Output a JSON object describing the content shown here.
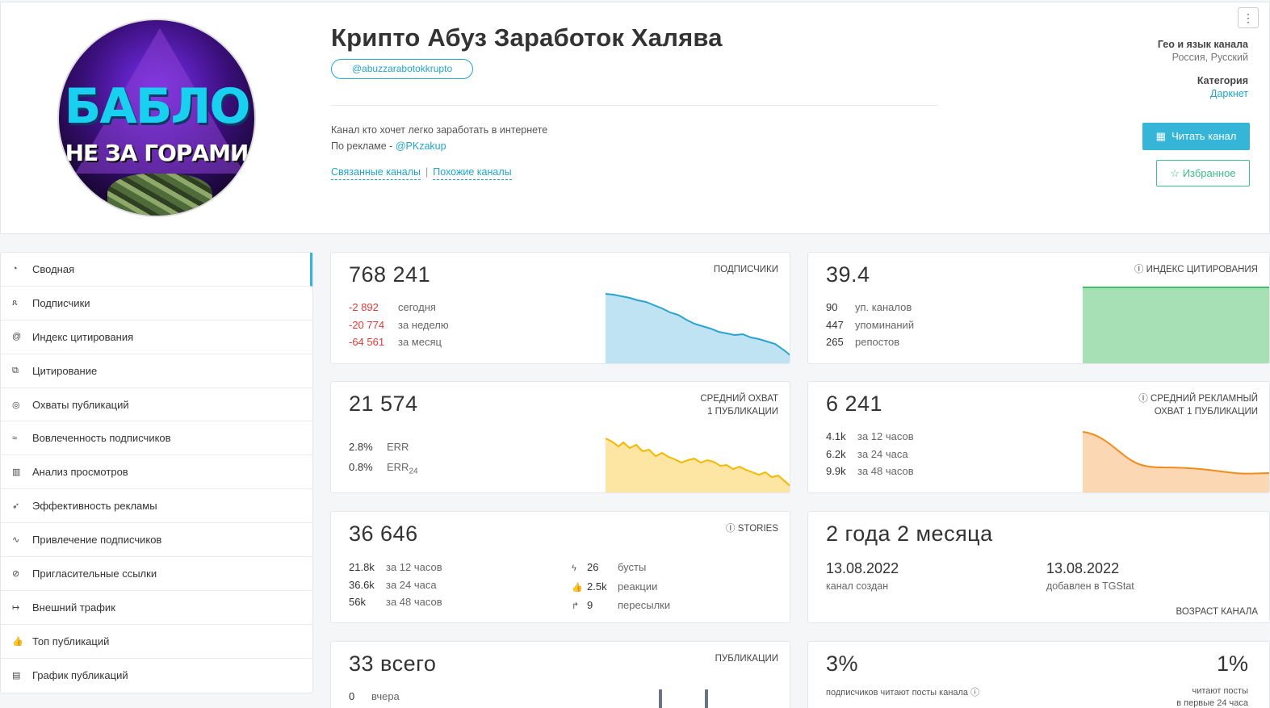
{
  "header": {
    "title": "Крипто Абуз Заработок Халява",
    "avatar_line1": "БАБЛО",
    "avatar_line2": "НЕ ЗА ГОРАМИ",
    "handle": "@abuzzarabotokkrupto",
    "description_line1": "Канал кто хочет легко заработать в интернете",
    "description_line2_prefix": "По рекламе - ",
    "description_link": "@PKzakup",
    "related_channels": "Связанные каналы",
    "separator": "|",
    "similar_channels": "Похожие каналы",
    "menu_icon": "⋮",
    "geo_label": "Гео и язык канала",
    "geo_value": "Россия, Русский",
    "category_label": "Категория",
    "category_value": "Даркнет",
    "read_button": "Читать канал",
    "favorite_button": "Избранное"
  },
  "sidebar": {
    "items": [
      {
        "label": "Сводная",
        "icon": "dashboard-icon",
        "glyph": "◔"
      },
      {
        "label": "Подписчики",
        "icon": "users-icon",
        "glyph": "ጸ"
      },
      {
        "label": "Индекс цитирования",
        "icon": "at-icon",
        "glyph": "@"
      },
      {
        "label": "Цитирование",
        "icon": "copy-icon",
        "glyph": "⧉"
      },
      {
        "label": "Охваты публикаций",
        "icon": "eye-icon",
        "glyph": "◎"
      },
      {
        "label": "Вовлеченность подписчиков",
        "icon": "wifi-icon",
        "glyph": "≈"
      },
      {
        "label": "Анализ просмотров",
        "icon": "bar-chart-icon",
        "glyph": "▥"
      },
      {
        "label": "Эффективность рекламы",
        "icon": "rocket-icon",
        "glyph": "➶"
      },
      {
        "label": "Привлечение подписчиков",
        "icon": "trend-icon",
        "glyph": "∿"
      },
      {
        "label": "Пригласительные ссылки",
        "icon": "link-icon",
        "glyph": "⊘"
      },
      {
        "label": "Внешний трафик",
        "icon": "arrow-icon",
        "glyph": "↦"
      },
      {
        "label": "Топ публикаций",
        "icon": "thumbs-up-icon",
        "glyph": "👍"
      },
      {
        "label": "График публикаций",
        "icon": "calendar-icon",
        "glyph": "▤"
      }
    ]
  },
  "subscribers": {
    "value": "768 241",
    "label": "ПОДПИСЧИКИ",
    "rows": [
      {
        "n": "-2 892",
        "d": "сегодня"
      },
      {
        "n": "-20 774",
        "d": "за неделю"
      },
      {
        "n": "-64 561",
        "d": "за месяц"
      }
    ],
    "color": "#29a3cf"
  },
  "citation": {
    "value": "39.4",
    "label": "ⓘ ИНДЕКС ЦИТИРОВАНИЯ",
    "rows": [
      {
        "n": "90",
        "d": "уп. каналов"
      },
      {
        "n": "447",
        "d": "упоминаний"
      },
      {
        "n": "265",
        "d": "репостов"
      }
    ],
    "color": "#3cc06a"
  },
  "reach": {
    "value": "21 574",
    "label1": "СРЕДНИЙ ОХВАТ",
    "label2": "1 ПУБЛИКАЦИИ",
    "err_n": "2.8%",
    "err_d": "ERR",
    "err24_n": "0.8%",
    "err24_d": "ERR",
    "err24_sub": "24",
    "color": "#f5b800"
  },
  "ad_reach": {
    "value": "6 241",
    "label1": "ⓘ СРЕДНИЙ РЕКЛАМНЫЙ",
    "label2": "ОХВАТ 1 ПУБЛИКАЦИИ",
    "rows": [
      {
        "n": "4.1k",
        "d": "за 12 часов"
      },
      {
        "n": "6.2k",
        "d": "за 24 часа"
      },
      {
        "n": "9.9k",
        "d": "за 48 часов"
      }
    ],
    "color": "#f28c1a"
  },
  "stories": {
    "value": "36 646",
    "label": "ⓘ STORIES",
    "rows": [
      {
        "n": "21.8k",
        "d": "за 12 часов"
      },
      {
        "n": "36.6k",
        "d": "за 24 часа"
      },
      {
        "n": "56k",
        "d": "за 48 часов"
      }
    ],
    "rows2": [
      {
        "icon": "bolt-icon",
        "glyph": "ϟ",
        "n": "26",
        "d": "бусты"
      },
      {
        "icon": "thumbs-up-icon",
        "glyph": "👍",
        "n": "2.5k",
        "d": "реакции"
      },
      {
        "icon": "share-icon",
        "glyph": "↱",
        "n": "9",
        "d": "пересылки"
      }
    ]
  },
  "age": {
    "value": "2 года 2 месяца",
    "created_date": "13.08.2022",
    "created_label": "канал создан",
    "added_date": "13.08.2022",
    "added_label": "добавлен в TGStat",
    "label": "ВОЗРАСТ КАНАЛА"
  },
  "posts": {
    "value": "33 всего",
    "label": "ПУБЛИКАЦИИ",
    "rows": [
      {
        "n": "0",
        "d": "вчера"
      }
    ]
  },
  "readers": {
    "value_left": "3%",
    "label_left": "подписчиков читают посты канала ⓘ",
    "value_right": "1%",
    "label_right1": "читают посты",
    "label_right2": "в первые 24 часа"
  }
}
